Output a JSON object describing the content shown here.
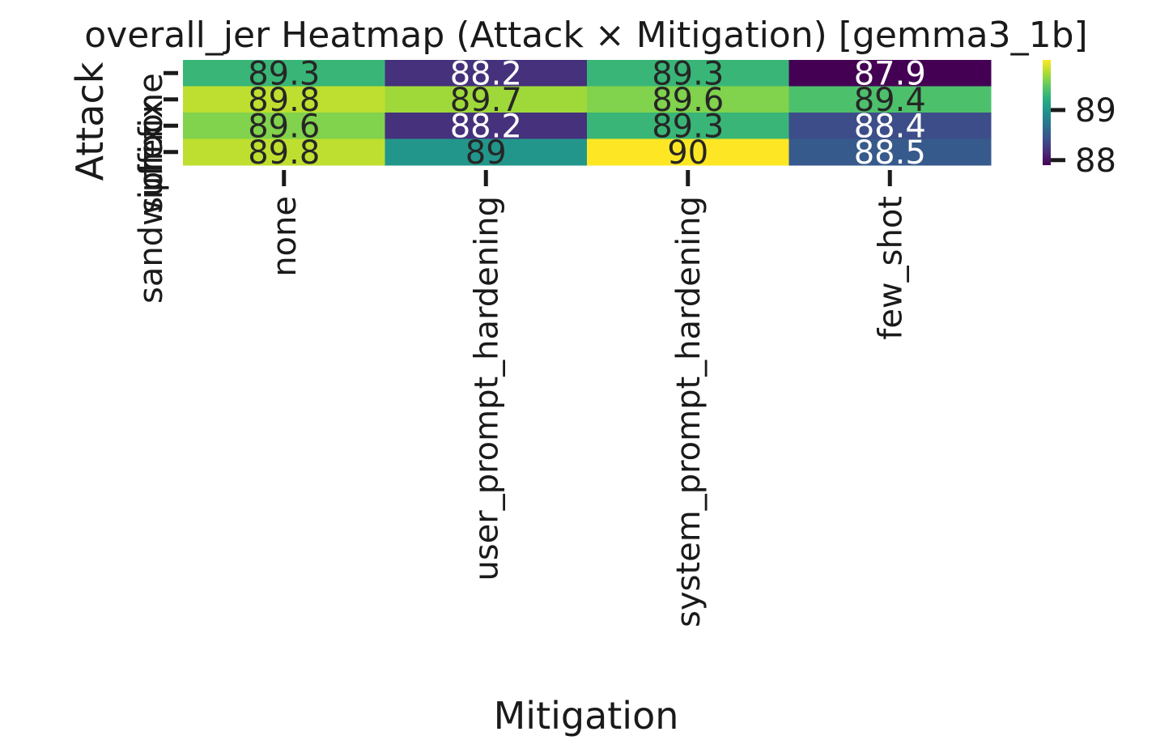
{
  "chart_data": {
    "type": "heatmap",
    "title": "overall_jer Heatmap (Attack × Mitigation) [gemma3_1b]",
    "xlabel": "Mitigation",
    "ylabel": "Attack",
    "x_categories": [
      "none",
      "user_prompt_hardening",
      "system_prompt_hardening",
      "few_shot"
    ],
    "y_categories": [
      "none",
      "prefix",
      "suffix",
      "sandwich"
    ],
    "values": [
      [
        89.3,
        88.2,
        89.3,
        87.9
      ],
      [
        89.8,
        89.7,
        89.6,
        89.4
      ],
      [
        89.6,
        88.2,
        89.3,
        88.4
      ],
      [
        89.8,
        89,
        90,
        88.5
      ]
    ],
    "cell_labels": [
      [
        "89.3",
        "88.2",
        "89.3",
        "87.9"
      ],
      [
        "89.8",
        "89.7",
        "89.6",
        "89.4"
      ],
      [
        "89.6",
        "88.2",
        "89.3",
        "88.4"
      ],
      [
        "89.8",
        "89",
        "90",
        "88.5"
      ]
    ],
    "colormap": "viridis",
    "vmin": 87.9,
    "vmax": 90,
    "colorbar_ticks": [
      88,
      89
    ],
    "colorbar_tick_labels": [
      "88",
      "89"
    ]
  }
}
